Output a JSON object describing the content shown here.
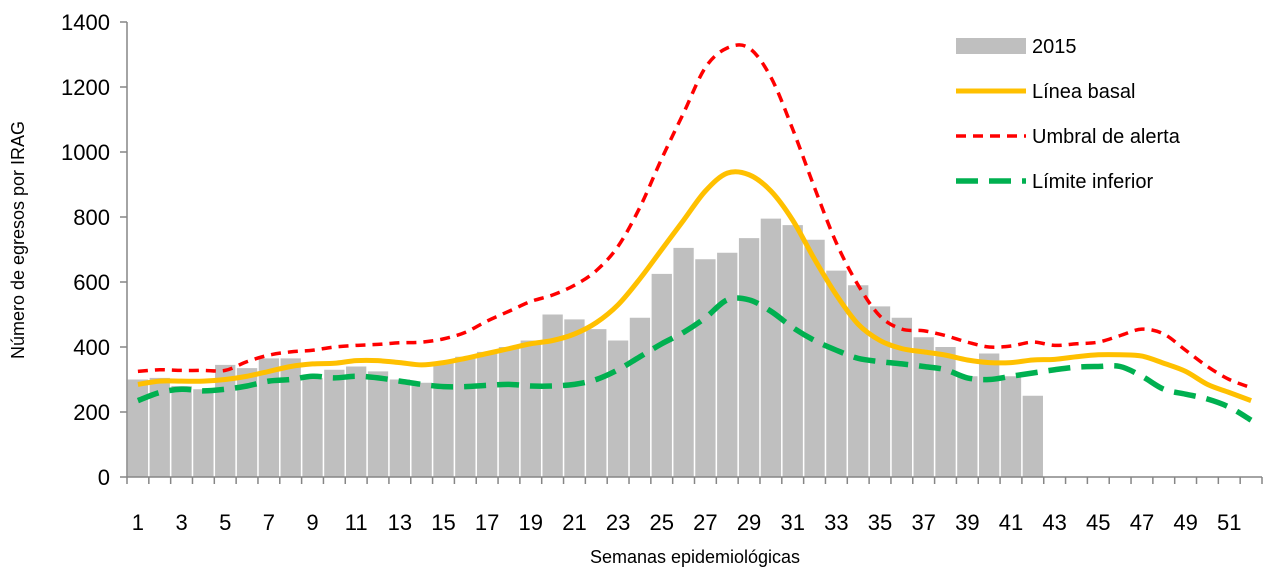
{
  "chart_data": {
    "type": "bar+line",
    "title": "",
    "xlabel": "Semanas epidemiológicas",
    "ylabel": "Número de egresos por IRAG",
    "ylim": [
      0,
      1400
    ],
    "yticks": [
      0,
      200,
      400,
      600,
      800,
      1000,
      1200,
      1400
    ],
    "x": [
      1,
      2,
      3,
      4,
      5,
      6,
      7,
      8,
      9,
      10,
      11,
      12,
      13,
      14,
      15,
      16,
      17,
      18,
      19,
      20,
      21,
      22,
      23,
      24,
      25,
      26,
      27,
      28,
      29,
      30,
      31,
      32,
      33,
      34,
      35,
      36,
      37,
      38,
      39,
      40,
      41,
      42,
      43,
      44,
      45,
      46,
      47,
      48,
      49,
      50,
      51,
      52
    ],
    "xtick_labels": [
      "1",
      "3",
      "5",
      "7",
      "9",
      "11",
      "13",
      "15",
      "17",
      "19",
      "21",
      "23",
      "25",
      "27",
      "29",
      "31",
      "33",
      "35",
      "37",
      "39",
      "41",
      "43",
      "45",
      "47",
      "49",
      "51"
    ],
    "legend_position": "top-right",
    "bars": {
      "name": "2015",
      "color": "#bfbfbf",
      "values": [
        300,
        305,
        280,
        270,
        345,
        335,
        365,
        365,
        305,
        330,
        340,
        325,
        300,
        290,
        355,
        370,
        385,
        400,
        420,
        500,
        485,
        455,
        420,
        490,
        625,
        705,
        670,
        690,
        735,
        795,
        775,
        730,
        635,
        590,
        525,
        490,
        430,
        400,
        310,
        380,
        310,
        250
      ]
    },
    "series": [
      {
        "name": "Línea basal",
        "color": "#ffc000",
        "style": "solid",
        "values": [
          285,
          295,
          295,
          295,
          300,
          310,
          325,
          340,
          348,
          350,
          358,
          358,
          352,
          345,
          352,
          365,
          380,
          395,
          410,
          420,
          440,
          475,
          530,
          610,
          700,
          790,
          880,
          935,
          930,
          880,
          790,
          670,
          560,
          470,
          420,
          395,
          385,
          375,
          360,
          352,
          352,
          360,
          362,
          370,
          376,
          376,
          372,
          350,
          325,
          285,
          260,
          235
        ]
      },
      {
        "name": "Umbral de alerta",
        "color": "#ff0000",
        "style": "short-dash",
        "values": [
          325,
          330,
          328,
          328,
          328,
          355,
          375,
          385,
          390,
          400,
          405,
          408,
          413,
          415,
          425,
          445,
          480,
          510,
          540,
          560,
          590,
          635,
          710,
          830,
          980,
          1120,
          1260,
          1320,
          1320,
          1230,
          1070,
          890,
          720,
          590,
          495,
          455,
          450,
          435,
          415,
          400,
          403,
          415,
          405,
          410,
          415,
          435,
          455,
          440,
          390,
          340,
          300,
          275
        ]
      },
      {
        "name": "Límite inferior",
        "color": "#00b050",
        "style": "long-dash",
        "values": [
          235,
          260,
          270,
          265,
          270,
          280,
          295,
          300,
          310,
          305,
          310,
          305,
          295,
          285,
          278,
          278,
          282,
          285,
          280,
          280,
          285,
          300,
          330,
          370,
          410,
          445,
          490,
          545,
          545,
          510,
          460,
          420,
          390,
          365,
          355,
          348,
          340,
          330,
          305,
          300,
          310,
          320,
          330,
          338,
          340,
          340,
          310,
          270,
          255,
          240,
          215,
          175
        ]
      }
    ]
  }
}
